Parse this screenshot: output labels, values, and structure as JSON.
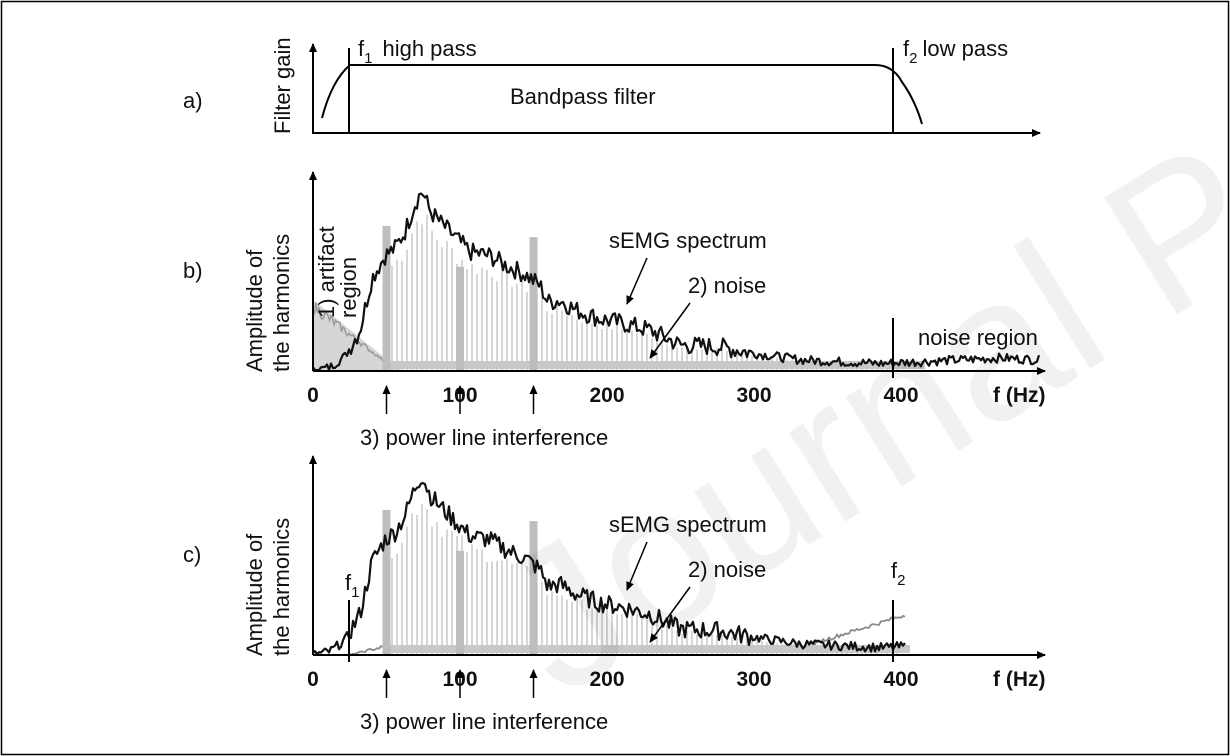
{
  "watermark": "Journal Pre-proofs",
  "panel_a": {
    "letter": "a)",
    "ylabel": "Filter gain",
    "f1_main": "f",
    "f1_sub": "1",
    "f1_text": "high pass",
    "f2_main": "f",
    "f2_sub": "2",
    "f2_text": "low pass",
    "center_label": "Bandpass filter"
  },
  "panel_b": {
    "letter": "b)",
    "ylabel_line1": "Amplitude of",
    "ylabel_line2": "the harmonics",
    "artifact_line1": "1) artifact",
    "artifact_line2": "region",
    "spectrum_label": "sEMG spectrum",
    "noise_label": "2) noise",
    "noise_region_label": "noise region",
    "power_line_label": "3) power line interference",
    "xticks": [
      "0",
      "100",
      "200",
      "300",
      "400"
    ],
    "xunit": "f (Hz)"
  },
  "panel_c": {
    "letter": "c)",
    "ylabel_line1": "Amplitude of",
    "ylabel_line2": "the harmonics",
    "f1_main": "f",
    "f1_sub": "1",
    "f2_main": "f",
    "f2_sub": "2",
    "spectrum_label": "sEMG spectrum",
    "noise_label": "2) noise",
    "power_line_label": "3) power line interference",
    "xticks": [
      "0",
      "100",
      "200",
      "300",
      "400"
    ],
    "xunit": "f (Hz)"
  },
  "x_axis": {
    "min_hz": 0,
    "max_hz": 480,
    "tick_hz": [
      0,
      100,
      200,
      300,
      400
    ]
  },
  "cutoffs_hz": {
    "f1": 25,
    "f2": 370
  },
  "power_line_hz": [
    50,
    100,
    150
  ],
  "colors": {
    "spectrum": "#111111",
    "bars": "#c8c8c8",
    "noise": "#bdbdbd",
    "frame": "#000000"
  }
}
